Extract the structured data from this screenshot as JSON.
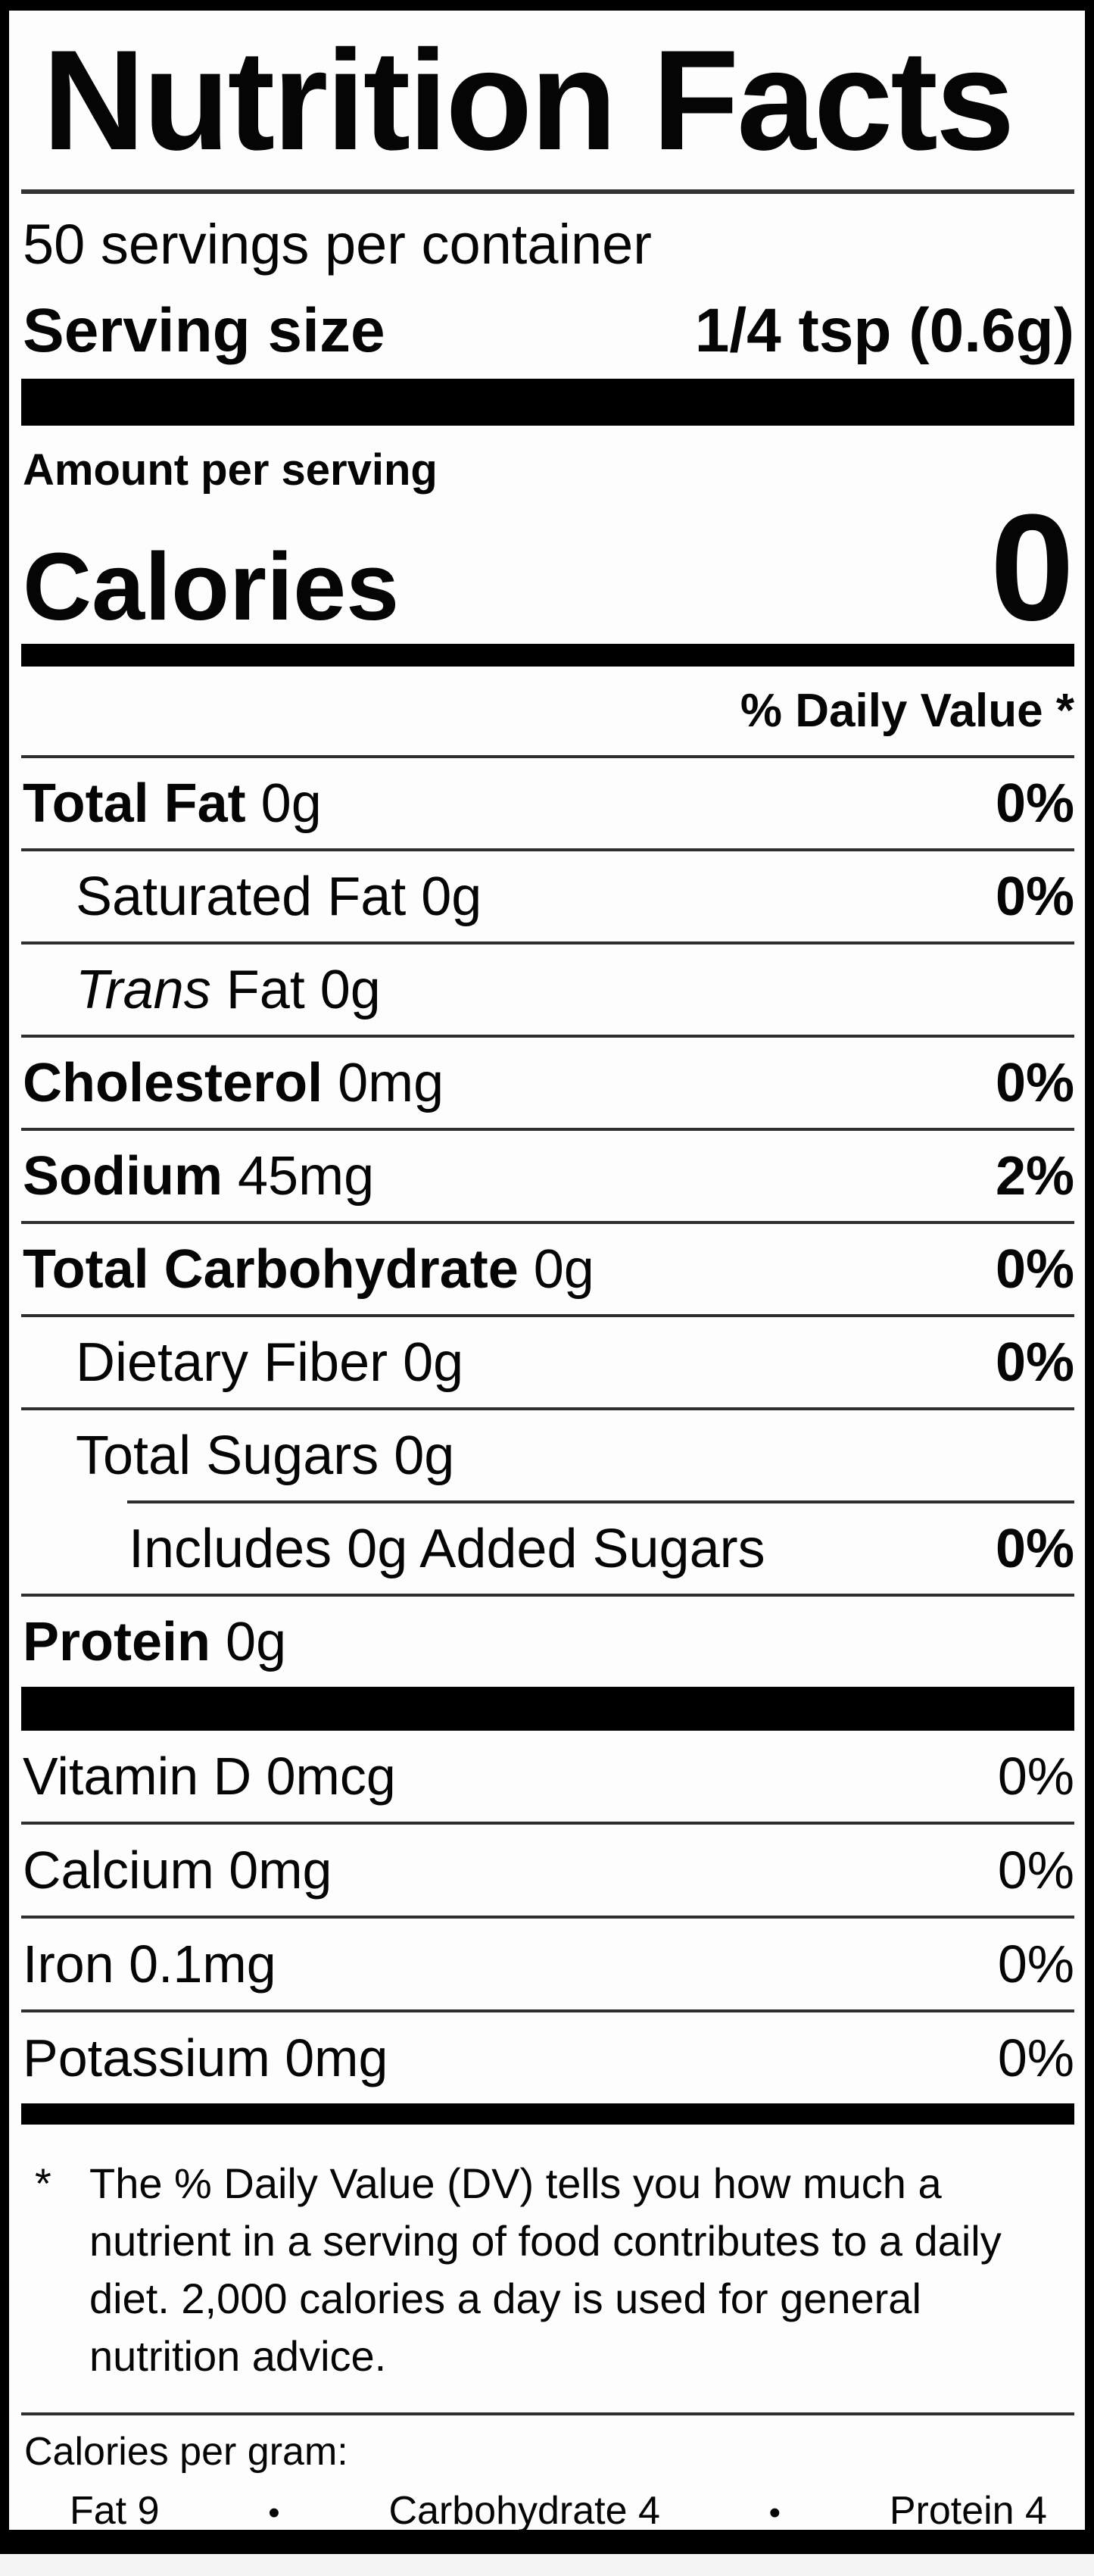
{
  "label": {
    "title": "Nutrition Facts",
    "servings_per_container": "50 servings per container",
    "serving_size_label": "Serving size",
    "serving_size_value": "1/4 tsp (0.6g)",
    "amount_per_serving": "Amount per serving",
    "calories_label": "Calories",
    "calories_value": "0",
    "daily_value_header": "% Daily Value *",
    "nutrients": [
      {
        "bold": "Total Fat",
        "text": " 0g",
        "dv": "0%"
      },
      {
        "text": "Saturated Fat 0g",
        "dv": "0%"
      },
      {
        "italic": "Trans",
        "text": " Fat 0g"
      },
      {
        "bold": "Cholesterol",
        "text": " 0mg",
        "dv": "0%"
      },
      {
        "bold": "Sodium",
        "text": " 45mg",
        "dv": "2%"
      },
      {
        "bold": "Total Carbohydrate",
        "text": " 0g",
        "dv": "0%"
      },
      {
        "text": "Dietary Fiber 0g",
        "dv": "0%"
      },
      {
        "text": "Total Sugars 0g"
      },
      {
        "text": "Includes 0g Added Sugars",
        "dv": "0%"
      },
      {
        "bold": "Protein",
        "text": " 0g"
      }
    ],
    "vitamins": [
      {
        "text": "Vitamin D 0mcg",
        "dv": "0%"
      },
      {
        "text": "Calcium 0mg",
        "dv": "0%"
      },
      {
        "text": "Iron 0.1mg",
        "dv": "0%"
      },
      {
        "text": "Potassium 0mg",
        "dv": "0%"
      }
    ],
    "footnote_marker": "*",
    "footnote": "The % Daily Value (DV) tells you how much a nutrient in a serving of food contributes to a daily diet. 2,000 calories a day is used for general nutrition advice.",
    "calories_per_gram_label": "Calories per gram:",
    "calories_per_gram": {
      "fat": "Fat 9",
      "bullet1": "•",
      "carbohydrate": "Carbohydrate 4",
      "bullet2": "•",
      "protein": "Protein 4"
    },
    "colors": {
      "text": "#050505",
      "label_background": "#fdfdfd",
      "bar": "#000000",
      "separator": "#2e2e2e",
      "page_background": "#f4f4f4"
    }
  }
}
